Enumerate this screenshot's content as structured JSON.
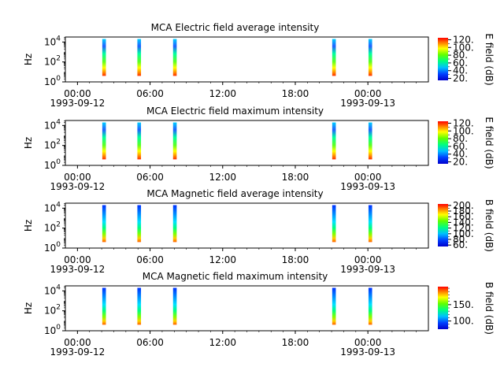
{
  "chart_data": [
    {
      "type": "heatmap",
      "title": "MCA  Electric field average intensity",
      "ylabel": "Hz",
      "y_ticks": [
        {
          "base": "10",
          "exp": "0"
        },
        {
          "base": "10",
          "exp": "2"
        },
        {
          "base": "10",
          "exp": "4"
        }
      ],
      "yscale": "log",
      "ylim": [
        1,
        31623
      ],
      "colorbar": {
        "label": "E field (dB)",
        "range": [
          15,
          125
        ],
        "ticks": [
          "20.",
          "40.",
          "60.",
          "80.",
          "100.",
          "120."
        ],
        "tick_values": [
          20,
          40,
          60,
          80,
          100,
          120
        ]
      },
      "burst_profile": "electric"
    },
    {
      "type": "heatmap",
      "title": "MCA  Electric field maximum intensity",
      "ylabel": "Hz",
      "y_ticks": [
        {
          "base": "10",
          "exp": "0"
        },
        {
          "base": "10",
          "exp": "2"
        },
        {
          "base": "10",
          "exp": "4"
        }
      ],
      "yscale": "log",
      "ylim": [
        1,
        31623
      ],
      "colorbar": {
        "label": "E field (dB)",
        "range": [
          15,
          125
        ],
        "ticks": [
          "20.",
          "40.",
          "60.",
          "80.",
          "100.",
          "120."
        ],
        "tick_values": [
          20,
          40,
          60,
          80,
          100,
          120
        ]
      },
      "burst_profile": "electric"
    },
    {
      "type": "heatmap",
      "title": "MCA  Magnetic field average intensity",
      "ylabel": "Hz",
      "y_ticks": [
        {
          "base": "10",
          "exp": "0"
        },
        {
          "base": "10",
          "exp": "2"
        },
        {
          "base": "10",
          "exp": "4"
        }
      ],
      "yscale": "log",
      "ylim": [
        1,
        31623
      ],
      "colorbar": {
        "label": "B field (dB)",
        "range": [
          55,
          205
        ],
        "ticks": [
          "60.",
          "80.",
          "100.",
          "120.",
          "140.",
          "160.",
          "180.",
          "200."
        ],
        "tick_values": [
          60,
          80,
          100,
          120,
          140,
          160,
          180,
          200
        ]
      },
      "burst_profile": "magnetic"
    },
    {
      "type": "heatmap",
      "title": "MCA  Magnetic field maximum intensity",
      "ylabel": "Hz",
      "y_ticks": [
        {
          "base": "10",
          "exp": "0"
        },
        {
          "base": "10",
          "exp": "2"
        },
        {
          "base": "10",
          "exp": "4"
        }
      ],
      "yscale": "log",
      "ylim": [
        1,
        31623
      ],
      "colorbar": {
        "label": "B field (dB)",
        "range": [
          75,
          205
        ],
        "ticks": [
          "100.",
          "150."
        ],
        "tick_values": [
          100,
          150
        ]
      },
      "burst_profile": "magnetic"
    }
  ],
  "x_axis": {
    "xlim_hours": [
      -1,
      29
    ],
    "major_ticks": [
      {
        "hours": 0,
        "time": "00:00",
        "date": "1993-09-12"
      },
      {
        "hours": 6,
        "time": "06:00",
        "date": ""
      },
      {
        "hours": 12,
        "time": "12:00",
        "date": ""
      },
      {
        "hours": 18,
        "time": "18:00",
        "date": ""
      },
      {
        "hours": 24,
        "time": "00:00",
        "date": "1993-09-13"
      }
    ],
    "minor_step_hours": 1
  },
  "data_bursts_hours": [
    {
      "start": 2.05,
      "end": 2.35
    },
    {
      "start": 4.95,
      "end": 5.25
    },
    {
      "start": 7.9,
      "end": 8.2
    },
    {
      "start": 21.05,
      "end": 21.35
    },
    {
      "start": 24.05,
      "end": 24.35
    }
  ]
}
